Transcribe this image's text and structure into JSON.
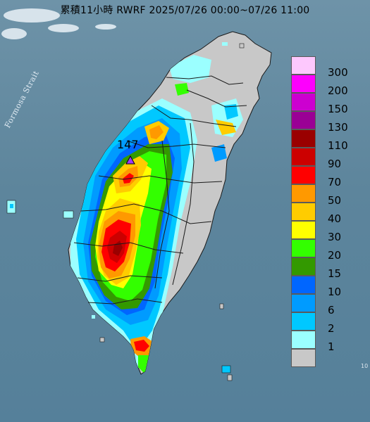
{
  "title": "累積11小時 RWRF 2025/07/26 00:00~07/26 11:00",
  "sea_label": "Formosa Strait",
  "max_marker": {
    "label": "147",
    "symbol": "triangle",
    "color": "#9b3bff"
  },
  "colors": {
    "sea": "#5d859c",
    "land_no_rain": "#c8c8c8",
    "county_border": "#1a1a1a"
  },
  "legend": {
    "levels": [
      {
        "label": "300",
        "color": "#fdc8fd"
      },
      {
        "label": "200",
        "color": "#fd00fd"
      },
      {
        "label": "150",
        "color": "#cc00d0"
      },
      {
        "label": "130",
        "color": "#9a0095"
      },
      {
        "label": "110",
        "color": "#9a0000"
      },
      {
        "label": "90",
        "color": "#cc0000"
      },
      {
        "label": "70",
        "color": "#ff0000"
      },
      {
        "label": "50",
        "color": "#ff9900"
      },
      {
        "label": "40",
        "color": "#ffcc00"
      },
      {
        "label": "30",
        "color": "#ffff00"
      },
      {
        "label": "20",
        "color": "#33ff00"
      },
      {
        "label": "15",
        "color": "#339900"
      },
      {
        "label": "10",
        "color": "#0066ff"
      },
      {
        "label": "6",
        "color": "#009bff"
      },
      {
        "label": "2",
        "color": "#00c8ff"
      },
      {
        "label": "1",
        "color": "#9bffff"
      },
      {
        "label": "",
        "color": "#c8c8c8"
      }
    ],
    "bottom_label": "1"
  },
  "corner_mark": "10"
}
